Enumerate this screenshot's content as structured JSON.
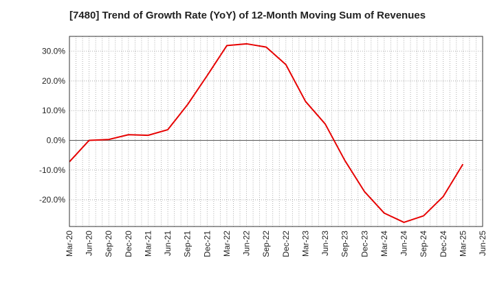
{
  "chart_data": {
    "type": "line",
    "title": "[7480]  Trend of Growth Rate (YoY) of 12-Month Moving Sum of Revenues",
    "xlabel": "",
    "ylabel": "",
    "x_ticks": [
      "Mar-20",
      "Jun-20",
      "Sep-20",
      "Dec-20",
      "Mar-21",
      "Jun-21",
      "Sep-21",
      "Dec-21",
      "Mar-22",
      "Jun-22",
      "Sep-22",
      "Dec-22",
      "Mar-23",
      "Jun-23",
      "Sep-23",
      "Dec-23",
      "Mar-24",
      "Jun-24",
      "Sep-24",
      "Dec-24",
      "Mar-25",
      "Jun-25"
    ],
    "y_ticks": [
      30,
      20,
      10,
      0,
      -10,
      -20
    ],
    "y_tick_labels": [
      "30.0%",
      "20.0%",
      "10.0%",
      "0.0%",
      "-10.0%",
      "-20.0%"
    ],
    "ylim": [
      -29,
      35
    ],
    "grid": true,
    "series": [
      {
        "color": "#e60000",
        "x": [
          "Mar-20",
          "Jun-20",
          "Sep-20",
          "Dec-20",
          "Mar-21",
          "Jun-21",
          "Sep-21",
          "Dec-21",
          "Mar-22",
          "Jun-22",
          "Sep-22",
          "Dec-22",
          "Mar-23",
          "Jun-23",
          "Sep-23",
          "Dec-23",
          "Mar-24",
          "Jun-24",
          "Sep-24",
          "Dec-24",
          "Mar-25"
        ],
        "values": [
          -7.2,
          0.0,
          0.3,
          1.9,
          1.7,
          3.6,
          12.0,
          21.8,
          31.9,
          32.5,
          31.4,
          25.5,
          13.1,
          5.5,
          -6.8,
          -17.3,
          -24.5,
          -27.6,
          -25.4,
          -18.9,
          -8.0
        ]
      }
    ]
  }
}
